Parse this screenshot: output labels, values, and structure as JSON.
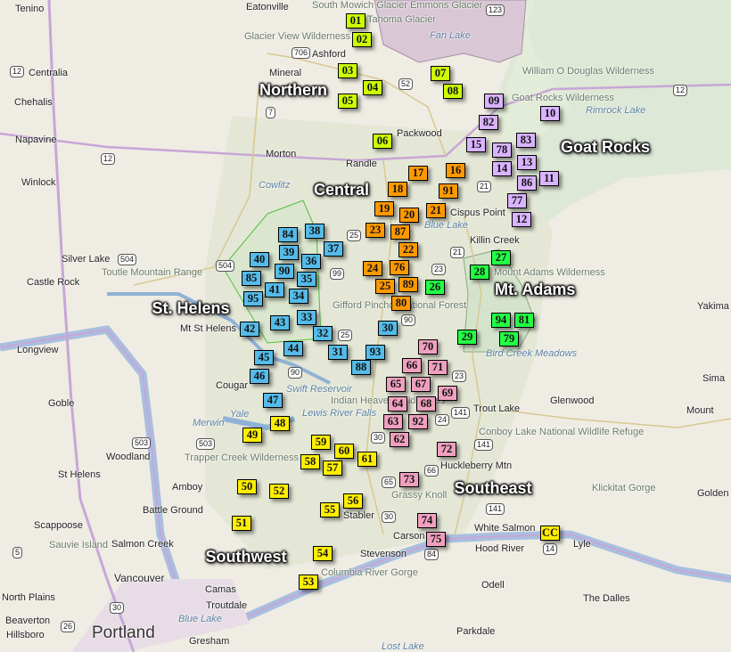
{
  "map": {
    "regions": [
      "Northern",
      "Goat Rocks",
      "Central",
      "Mt. Adams",
      "St. Helens",
      "Southeast",
      "Southwest"
    ],
    "marker_groups": [
      {
        "region": "Northern",
        "color": "#ccff00",
        "ids": [
          "01",
          "02",
          "03",
          "04",
          "05",
          "06",
          "07",
          "08"
        ]
      },
      {
        "region": "Goat Rocks",
        "color": "#d9b3ff",
        "ids": [
          "09",
          "10",
          "82",
          "83",
          "15",
          "78",
          "13",
          "14",
          "86",
          "11",
          "77",
          "12"
        ]
      },
      {
        "region": "Central",
        "color": "#ff9900",
        "ids": [
          "17",
          "16",
          "18",
          "91",
          "19",
          "20",
          "21",
          "23",
          "87",
          "22",
          "24",
          "76",
          "25",
          "89",
          "80"
        ]
      },
      {
        "region": "Mt. Adams",
        "color": "#22ff44",
        "ids": [
          "27",
          "28",
          "26",
          "94",
          "81",
          "29",
          "79"
        ]
      },
      {
        "region": "St. Helens",
        "color": "#55bbe8",
        "ids": [
          "84",
          "38",
          "37",
          "39",
          "36",
          "40",
          "90",
          "35",
          "85",
          "41",
          "34",
          "95",
          "43",
          "33",
          "42",
          "32",
          "44",
          "31",
          "30",
          "93",
          "88",
          "45",
          "46",
          "47"
        ]
      },
      {
        "region": "Southeast",
        "color": "#f0a0bf",
        "ids": [
          "70",
          "66",
          "71",
          "65",
          "67",
          "69",
          "64",
          "68",
          "63",
          "92",
          "62",
          "72",
          "73",
          "74",
          "75"
        ]
      },
      {
        "region": "Southwest",
        "color": "#ffee00",
        "ids": [
          "48",
          "49",
          "59",
          "60",
          "61",
          "58",
          "57",
          "50",
          "52",
          "56",
          "55",
          "51",
          "54",
          "53",
          "CC"
        ]
      }
    ],
    "places": [
      "Tenino",
      "Eatonville",
      "Glacier View Wilderness",
      "Ashford",
      "Mineral",
      "Centralia",
      "Chehalis",
      "Napavine",
      "Winlock",
      "Morton",
      "Packwood",
      "Randle",
      "Cowlitz",
      "Silver Lake",
      "Toutle Mountain Range",
      "Castle Rock",
      "Longview",
      "Goble",
      "Woodland",
      "St Helens",
      "Amboy",
      "Cougar",
      "Yale",
      "Merwin",
      "Battle Ground",
      "Scappoose",
      "Sauvie Island",
      "Salmon Creek",
      "Vancouver",
      "North Plains",
      "Hillsboro",
      "Beaverton",
      "Portland",
      "Camas",
      "Troutdale",
      "Blue Lake",
      "Gresham",
      "Lost Lake",
      "Parkdale",
      "Odell",
      "Hood River",
      "White Salmon",
      "Lyle",
      "The Dalles",
      "Stevenson",
      "Columbia River Gorge",
      "Carson",
      "Stabler",
      "Grassy Knoll",
      "Huckleberry Mtn",
      "Trout Lake",
      "Glenwood",
      "Conboy Lake National Wildlife Refuge",
      "Klickitat Gorge",
      "Golden",
      "Bird Creek Meadows",
      "Yakima",
      "Rimrock Lake",
      "William O Douglas Wilderness",
      "Gifford Pinchot National Forest",
      "Swift Reservoir",
      "Killin Creek",
      "Blue Lake",
      "Tahoma Glacier",
      "Emmons Glacier",
      "South Mowich Glacier",
      "Fan Lake",
      "Mount Adams Wilderness",
      "Indian Heaven Wilderness",
      "Trapper Creek Wilderness",
      "Lewis River Falls",
      "Cispus Point",
      "Goat Rocks Wilderness",
      "Mt St Helens",
      "Sima",
      "Mount"
    ],
    "highways": [
      "12",
      "12",
      "12",
      "706",
      "7",
      "123",
      "52",
      "504",
      "504",
      "5",
      "503",
      "503",
      "30",
      "30",
      "30",
      "84",
      "14",
      "141",
      "141",
      "141",
      "26",
      "25",
      "25",
      "99",
      "90",
      "90",
      "23",
      "23",
      "21",
      "21",
      "65",
      "66",
      "24"
    ]
  }
}
